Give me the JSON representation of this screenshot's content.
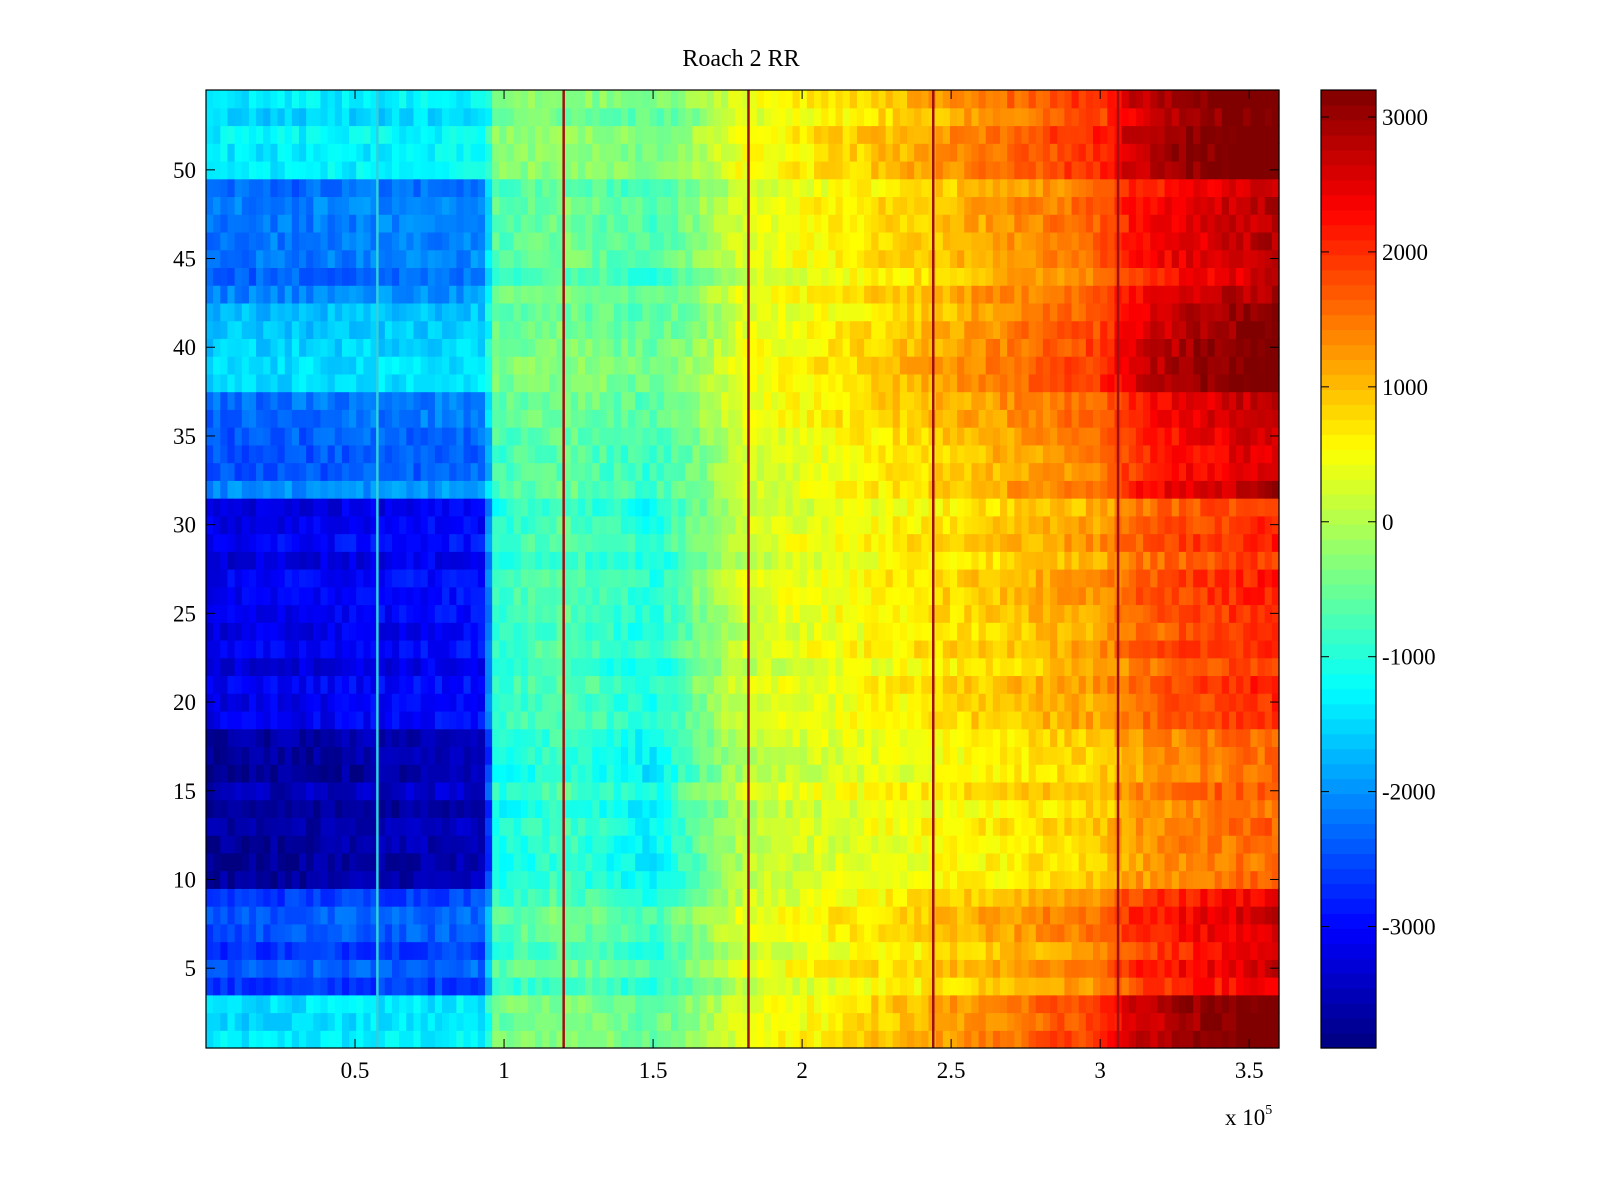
{
  "chart_data": {
    "type": "heatmap",
    "title": "Roach 2 RR",
    "xlabel": "",
    "ylabel": "",
    "x_exponent_label": "x 10",
    "x_exponent": "5",
    "xlim": [
      0,
      360000
    ],
    "ylim": [
      0.5,
      54.5
    ],
    "x_ticks": [
      0.5,
      1,
      1.5,
      2,
      2.5,
      3,
      3.5
    ],
    "x_tick_labels": [
      "0.5",
      "1",
      "1.5",
      "2",
      "2.5",
      "3",
      "3.5"
    ],
    "y_ticks": [
      5,
      10,
      15,
      20,
      25,
      30,
      35,
      40,
      45,
      50
    ],
    "y_tick_labels": [
      "5",
      "10",
      "15",
      "20",
      "25",
      "30",
      "35",
      "40",
      "45",
      "50"
    ],
    "colormap": "jet",
    "colorbar": {
      "range": [
        -3900,
        3200
      ],
      "ticks": [
        -3000,
        -2000,
        -1000,
        0,
        1000,
        2000,
        3000
      ],
      "tick_labels": [
        "-3000",
        "-2000",
        "-1000",
        "0",
        "1000",
        "2000",
        "3000"
      ]
    },
    "value_profile": {
      "description_points_x": [
        0,
        50000,
        94000,
        96000,
        120000,
        150000,
        180000,
        240000,
        300000,
        310000,
        330000,
        360000
      ],
      "values": [
        -2900,
        -2800,
        -2700,
        -900,
        -600,
        -1000,
        200,
        700,
        1300,
        1700,
        2000,
        2300
      ]
    },
    "row_offsets": [
      {
        "rows": [
          1,
          3
        ],
        "offset": 900
      },
      {
        "rows": [
          4,
          9
        ],
        "offset": 200
      },
      {
        "rows": [
          10,
          18
        ],
        "offset": -500
      },
      {
        "rows": [
          19,
          31
        ],
        "offset": -200
      },
      {
        "rows": [
          32,
          32
        ],
        "offset": 600
      },
      {
        "rows": [
          33,
          37
        ],
        "offset": 300
      },
      {
        "rows": [
          38,
          42
        ],
        "offset": 800
      },
      {
        "rows": [
          43,
          49
        ],
        "offset": 400
      },
      {
        "rows": [
          50,
          54
        ],
        "offset": 900
      }
    ],
    "vertical_lines_x": [
      57500,
      120000,
      182000,
      244000,
      306000
    ]
  }
}
